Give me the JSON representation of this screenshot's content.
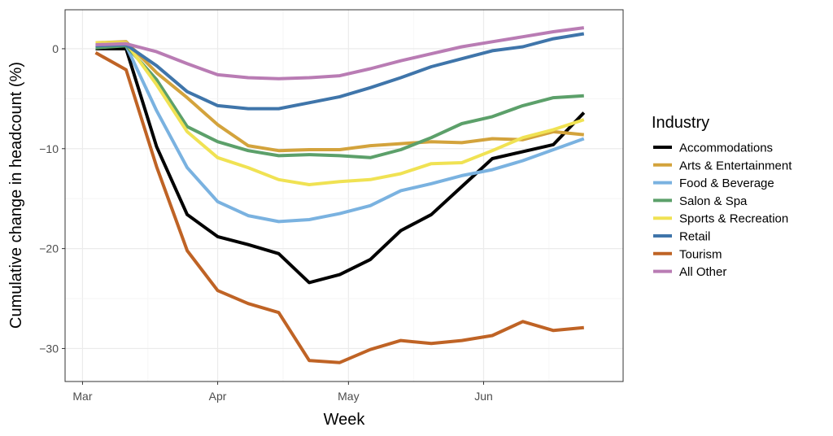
{
  "chart_data": {
    "type": "line",
    "xlabel": "Week",
    "ylabel": "Cumulative change in headcount (%)",
    "legend_title": "Industry",
    "legend_placement": "right",
    "grid": true,
    "x_ticks": [
      "Mar",
      "Apr",
      "May",
      "Jun"
    ],
    "y_ticks": [
      0,
      -10,
      -20,
      -30
    ],
    "ylim": [
      -33.3,
      3.9
    ],
    "xlim": [
      "2020-02-26",
      "2020-07-03"
    ],
    "x": [
      "2020-03-04",
      "2020-03-11",
      "2020-03-18",
      "2020-03-25",
      "2020-04-01",
      "2020-04-08",
      "2020-04-15",
      "2020-04-22",
      "2020-04-29",
      "2020-05-06",
      "2020-05-13",
      "2020-05-20",
      "2020-05-27",
      "2020-06-03",
      "2020-06-10",
      "2020-06-17",
      "2020-06-24"
    ],
    "series": [
      {
        "name": "Accommodations",
        "color": "#000000",
        "values": [
          0.0,
          0.0,
          -9.8,
          -16.6,
          -18.8,
          -19.6,
          -20.5,
          -23.4,
          -22.6,
          -21.1,
          -18.2,
          -16.6,
          -13.8,
          -11.0,
          -10.3,
          -9.6,
          -6.4
        ]
      },
      {
        "name": "Arts & Entertainment",
        "color": "#d3a33c",
        "values": [
          0.6,
          0.7,
          -2.4,
          -4.9,
          -7.6,
          -9.7,
          -10.2,
          -10.1,
          -10.1,
          -9.7,
          -9.5,
          -9.3,
          -9.4,
          -9.0,
          -9.1,
          -8.3,
          -8.6
        ]
      },
      {
        "name": "Food & Beverage",
        "color": "#7ab2e0",
        "values": [
          0.4,
          0.3,
          -6.2,
          -11.9,
          -15.3,
          -16.7,
          -17.3,
          -17.1,
          -16.5,
          -15.7,
          -14.2,
          -13.5,
          -12.7,
          -12.1,
          -11.2,
          -10.1,
          -9.0
        ]
      },
      {
        "name": "Salon & Spa",
        "color": "#5ca06a",
        "values": [
          0.1,
          0.3,
          -3.1,
          -7.8,
          -9.3,
          -10.2,
          -10.7,
          -10.6,
          -10.7,
          -10.9,
          -10.1,
          -8.9,
          -7.5,
          -6.8,
          -5.7,
          -4.9,
          -4.7
        ]
      },
      {
        "name": "Sports & Recreation",
        "color": "#f0e253",
        "values": [
          0.6,
          0.6,
          -3.6,
          -8.3,
          -10.9,
          -11.9,
          -13.1,
          -13.6,
          -13.3,
          -13.1,
          -12.5,
          -11.5,
          -11.4,
          -10.2,
          -8.9,
          -8.1,
          -7.1
        ]
      },
      {
        "name": "Retail",
        "color": "#3f75aa",
        "values": [
          0.3,
          0.4,
          -1.7,
          -4.3,
          -5.7,
          -6.0,
          -6.0,
          -5.4,
          -4.8,
          -3.9,
          -2.9,
          -1.8,
          -1.0,
          -0.2,
          0.2,
          1.0,
          1.5
        ]
      },
      {
        "name": "Tourism",
        "color": "#bf6325",
        "values": [
          -0.4,
          -2.1,
          -11.8,
          -20.2,
          -24.2,
          -25.5,
          -26.4,
          -31.2,
          -31.4,
          -30.1,
          -29.2,
          -29.5,
          -29.2,
          -28.7,
          -27.3,
          -28.2,
          -27.9
        ]
      },
      {
        "name": "All Other",
        "color": "#b97cb4",
        "values": [
          0.4,
          0.5,
          -0.3,
          -1.5,
          -2.6,
          -2.9,
          -3.0,
          -2.9,
          -2.7,
          -2.0,
          -1.2,
          -0.5,
          0.2,
          0.7,
          1.2,
          1.7,
          2.1
        ]
      }
    ]
  }
}
